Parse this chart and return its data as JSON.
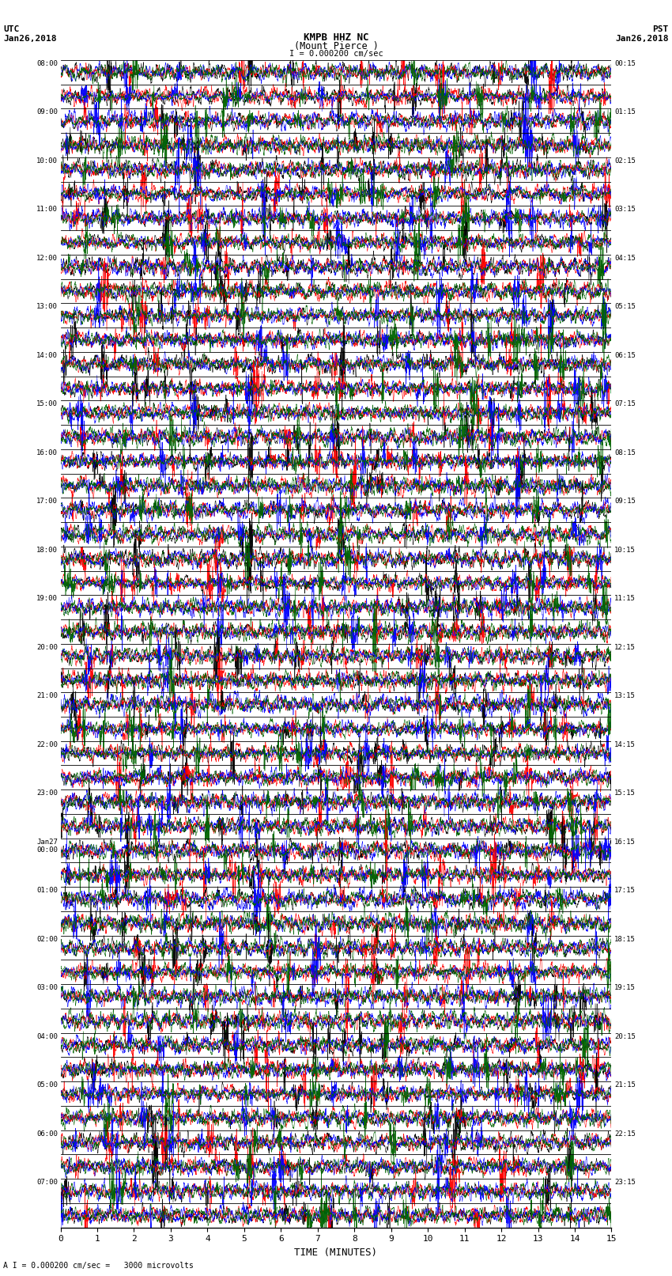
{
  "title_line1": "KMPB HHZ NC",
  "title_line2": "(Mount Pierce )",
  "scale_label": "I = 0.000200 cm/sec",
  "left_label_top": "UTC",
  "left_label_date": "Jan26,2018",
  "right_label_top": "PST",
  "right_label_date": "Jan26,2018",
  "bottom_label": "TIME (MINUTES)",
  "bottom_note": "A I = 0.000200 cm/sec =   3000 microvolts",
  "left_times": [
    "08:00",
    "09:00",
    "10:00",
    "11:00",
    "12:00",
    "13:00",
    "14:00",
    "15:00",
    "16:00",
    "17:00",
    "18:00",
    "19:00",
    "20:00",
    "21:00",
    "22:00",
    "23:00",
    "Jan27\n00:00",
    "01:00",
    "02:00",
    "03:00",
    "04:00",
    "05:00",
    "06:00",
    "07:00"
  ],
  "right_times": [
    "00:15",
    "01:15",
    "02:15",
    "03:15",
    "04:15",
    "05:15",
    "06:15",
    "07:15",
    "08:15",
    "09:15",
    "10:15",
    "11:15",
    "12:15",
    "13:15",
    "14:15",
    "15:15",
    "16:15",
    "17:15",
    "18:15",
    "19:15",
    "20:15",
    "21:15",
    "22:15",
    "23:15"
  ],
  "n_traces": 48,
  "samples_per_trace": 3000,
  "background_color": "#ffffff",
  "trace_colors": [
    "#000000",
    "#ff0000",
    "#0000ff",
    "#006400"
  ],
  "xlabel_ticks": [
    0,
    1,
    2,
    3,
    4,
    5,
    6,
    7,
    8,
    9,
    10,
    11,
    12,
    13,
    14,
    15
  ],
  "figsize": [
    8.5,
    16.13
  ],
  "dpi": 100
}
